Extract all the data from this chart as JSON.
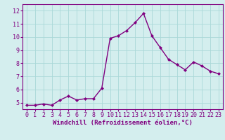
{
  "x": [
    0,
    1,
    2,
    3,
    4,
    5,
    6,
    7,
    8,
    9,
    10,
    11,
    12,
    13,
    14,
    15,
    16,
    17,
    18,
    19,
    20,
    21,
    22,
    23
  ],
  "y": [
    4.8,
    4.8,
    4.9,
    4.8,
    5.2,
    5.5,
    5.2,
    5.3,
    5.3,
    6.1,
    9.9,
    10.1,
    10.5,
    11.1,
    11.8,
    10.1,
    9.2,
    8.3,
    7.9,
    7.5,
    8.1,
    7.8,
    7.4,
    7.2
  ],
  "line_color": "#800080",
  "marker": "D",
  "marker_size": 2.0,
  "line_width": 1.0,
  "xlabel": "Windchill (Refroidissement éolien,°C)",
  "xlabel_fontsize": 6.5,
  "ylim": [
    4.5,
    12.5
  ],
  "xlim": [
    -0.5,
    23.5
  ],
  "yticks": [
    5,
    6,
    7,
    8,
    9,
    10,
    11,
    12
  ],
  "xticks": [
    0,
    1,
    2,
    3,
    4,
    5,
    6,
    7,
    8,
    9,
    10,
    11,
    12,
    13,
    14,
    15,
    16,
    17,
    18,
    19,
    20,
    21,
    22,
    23
  ],
  "bg_color": "#d4eeee",
  "grid_color": "#aad8d8",
  "tick_label_fontsize": 6.0
}
